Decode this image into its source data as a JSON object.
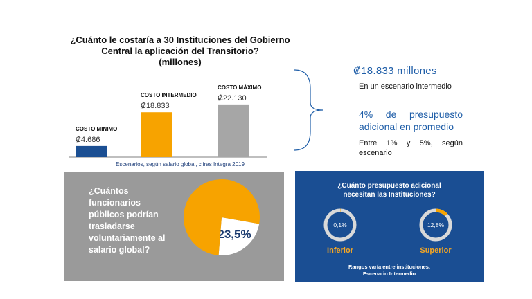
{
  "chart_data": [
    {
      "type": "bar",
      "title": "¿Cuánto le costaría a 30 Instituciones del Gobierno Central la aplicación del Transitorio? (millones)",
      "categories": [
        "COSTO MINIMO",
        "COSTO INTERMEDIO",
        "COSTO MÁXIMO"
      ],
      "values": [
        4686,
        18833,
        22130
      ],
      "value_labels": [
        "₡4.686",
        "₡18.833",
        "₡22.130"
      ],
      "colors": [
        "#1b4f93",
        "#f7a300",
        "#a6a6a6"
      ],
      "note": "Escenarios, según salario global, cifras Integra 2019",
      "ylim": [
        0,
        25000
      ]
    },
    {
      "type": "pie",
      "title": "¿Cuántos funcionarios públicos podrían trasladarse voluntariamente al salario global?",
      "slices": [
        {
          "label": "23,5%",
          "value": 23.5,
          "color": "#ffffff"
        },
        {
          "label": "",
          "value": 76.5,
          "color": "#f7a300"
        }
      ]
    },
    {
      "type": "pie",
      "title": "¿Cuánto presupuesto adicional necesitan las Instituciones?",
      "donuts": [
        {
          "name": "Inferior",
          "label": "0,1%",
          "value": 0.1
        },
        {
          "name": "Superior",
          "label": "12,8%",
          "value": 12.8
        }
      ],
      "note": "Rangos varía entre instituciones. Escenario Intermedio"
    }
  ],
  "bar_title_lines": [
    "¿Cuánto le costaría a 30 Instituciones del Gobierno",
    "Central la aplicación del Transitorio?",
    "(millones)"
  ],
  "summary": {
    "main_figure": "₡18.833 millones",
    "main_sub": "En un escenario intermedio",
    "pct_line": "4% de presupuesto adicional en promedio",
    "range_note": "Entre 1% y 5%, según escenario"
  },
  "pie_question_lines": [
    "¿Cuántos",
    "funcionarios",
    "públicos podrían",
    "trasladarse",
    "voluntariamente al",
    "salario global?"
  ],
  "budget_question_lines": [
    "¿Cuánto presupuesto adicional",
    "necesitan  las Instituciones?"
  ],
  "blue_note_lines": [
    "Rangos varía entre instituciones.",
    "Escenario Intermedio"
  ]
}
